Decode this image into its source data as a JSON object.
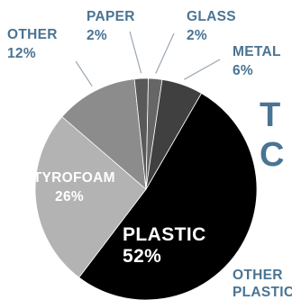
{
  "chart_data": {
    "type": "pie",
    "title_fragment": [
      "T",
      "C"
    ],
    "slices": [
      {
        "label": "PLASTIC",
        "value": 52,
        "value_label": "52%",
        "color": "#000000"
      },
      {
        "label": "STYROFOAM",
        "value": 26,
        "value_label": "26%",
        "color": "#b3b3b3"
      },
      {
        "label": "OTHER",
        "value": 12,
        "value_label": "12%",
        "color": "#8c8c8c"
      },
      {
        "label": "PAPER",
        "value": 2,
        "value_label": "2%",
        "color": "#595959"
      },
      {
        "label": "GLASS",
        "value": 2,
        "value_label": "2%",
        "color": "#666666"
      },
      {
        "label": "METAL",
        "value": 6,
        "value_label": "6%",
        "color": "#404040"
      }
    ],
    "partial_label": [
      "OTHER",
      "PLASTIC"
    ],
    "colors": {
      "label_text": "#4a7493",
      "inner_text": "#ffffff"
    }
  }
}
